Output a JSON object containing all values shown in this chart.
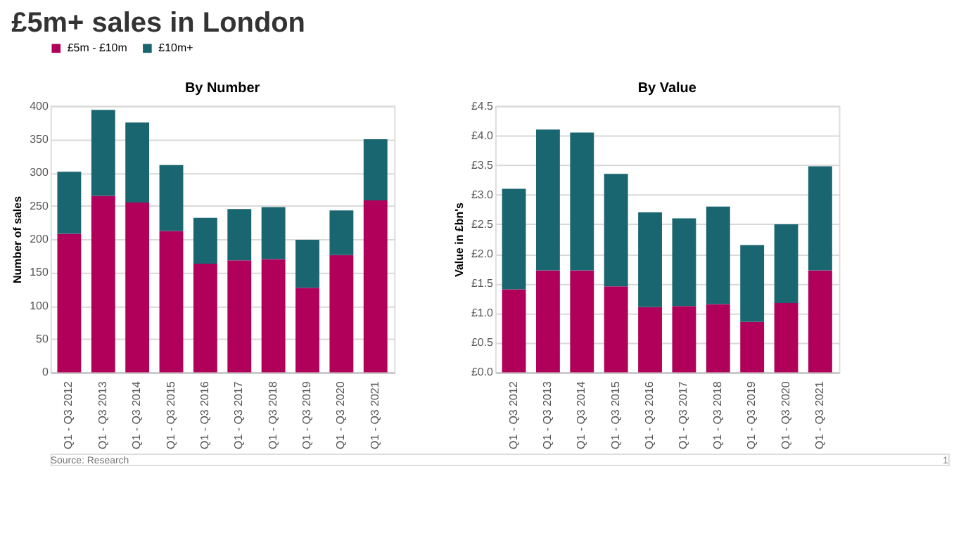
{
  "chart_data": [
    {
      "type": "bar",
      "title": "By Number",
      "ylabel": "Number of sales",
      "stacked": true,
      "grid": "y",
      "legend": "top",
      "categories": [
        "Q1 - Q3 2012",
        "Q1 - Q3 2013",
        "Q1 - Q3 2014",
        "Q1 - Q3 2015",
        "Q1 - Q3 2016",
        "Q1 - Q3 2017",
        "Q1 - Q3 2018",
        "Q1 - Q3 2019",
        "Q1 - Q3 2020",
        "Q1 - Q3 2021"
      ],
      "series": [
        {
          "name": "£5m - £10m",
          "color": "#b0005a",
          "values": [
            208,
            265,
            255,
            212,
            163,
            168,
            170,
            127,
            176,
            258
          ]
        },
        {
          "name": "£10m+",
          "color": "#1a6670",
          "values": [
            93,
            129,
            120,
            99,
            69,
            77,
            78,
            72,
            67,
            92
          ]
        }
      ],
      "ylim": [
        0,
        400
      ],
      "yticks": [
        0,
        50,
        100,
        150,
        200,
        250,
        300,
        350,
        400
      ],
      "annotations": [
        "£5m+ sales in London"
      ]
    },
    {
      "type": "bar",
      "title": "By Value",
      "ylabel": "Value in £bn's",
      "stacked": true,
      "grid": "y",
      "legend": "top",
      "categories": [
        "Q1 - Q3 2012",
        "Q1 - Q3 2013",
        "Q1 - Q3 2014",
        "Q1 - Q3 2015",
        "Q1 - Q3 2016",
        "Q1 - Q3 2017",
        "Q1 - Q3 2018",
        "Q1 - Q3 2019",
        "Q1 - Q3 2020",
        "Q1 - Q3 2021"
      ],
      "series": [
        {
          "name": "£5m - £10m",
          "color": "#b0005a",
          "values": [
            1.4,
            1.72,
            1.72,
            1.45,
            1.1,
            1.12,
            1.15,
            0.85,
            1.17,
            1.72
          ]
        },
        {
          "name": "£10m+",
          "color": "#1a6670",
          "values": [
            1.7,
            2.38,
            2.33,
            1.9,
            1.6,
            1.48,
            1.65,
            1.3,
            1.33,
            1.76
          ]
        }
      ],
      "ylim": [
        0,
        4.5
      ],
      "yticks": [
        {
          "value": 0,
          "label": "£0.0"
        },
        {
          "value": 0.5,
          "label": "£0.5"
        },
        {
          "value": 1,
          "label": "£1.0"
        },
        {
          "value": 1.5,
          "label": "£1.5"
        },
        {
          "value": 2,
          "label": "£2.0"
        },
        {
          "value": 2.5,
          "label": "£2.5"
        },
        {
          "value": 3,
          "label": "£3.0"
        },
        {
          "value": 3.5,
          "label": "£3.5"
        },
        {
          "value": 4,
          "label": "£4.0"
        },
        {
          "value": 4.5,
          "label": "£4.5"
        }
      ],
      "annotations": [
        "Source: Research",
        "1"
      ]
    }
  ]
}
